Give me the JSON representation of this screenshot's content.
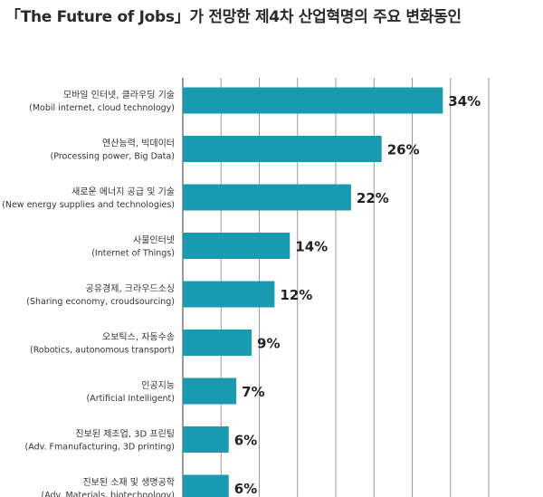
{
  "chart_data": {
    "type": "bar",
    "orientation": "horizontal",
    "title": "「The Future of Jobs」가 전망한 제4차 산업혁명의 주요 변화동인",
    "categories": [
      {
        "ko": "모바일 인터넷, 클라우딩 기술",
        "en": "(Mobil internet, cloud technology)"
      },
      {
        "ko": "연산능력, 빅데이터",
        "en": "(Processing power, Big Data)"
      },
      {
        "ko": "새로운 에너지 공급 및 기술",
        "en": "(New energy supplies and technologies)"
      },
      {
        "ko": "사물인터넷",
        "en": "(Internet of Things)"
      },
      {
        "ko": "공유경제, 크라우드소싱",
        "en": "(Sharing economy, croudsourcing)"
      },
      {
        "ko": "오보틱스, 자동수송",
        "en": "(Robotics, autonomous transport)"
      },
      {
        "ko": "인공지능",
        "en": "(Artificial Intelligent)"
      },
      {
        "ko": "진보된 제조업, 3D 프린팅",
        "en": "(Adv. Fmanufacturing, 3D printing)"
      },
      {
        "ko": "진보된 소재 및 생명공학",
        "en": "(Adv. Materials, biotechnology)"
      }
    ],
    "values": [
      34,
      26,
      22,
      14,
      12,
      9,
      7,
      6,
      6
    ],
    "value_labels": [
      "34%",
      "26%",
      "22%",
      "14%",
      "12%",
      "9%",
      "7%",
      "6%",
      "6%"
    ],
    "xlim": [
      0,
      40
    ],
    "grid": true,
    "bar_color": "#1a9aae",
    "grid_color": "#999999"
  }
}
